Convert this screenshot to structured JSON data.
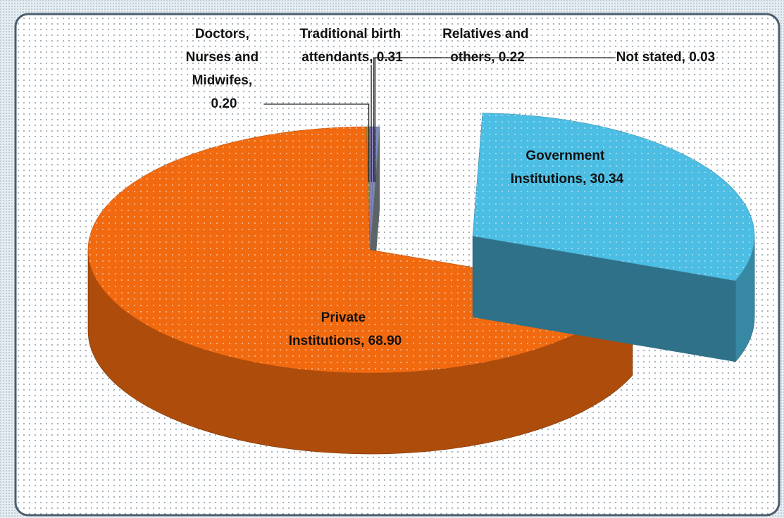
{
  "chart_data": {
    "type": "pie3d",
    "categories": [
      "Government Institutions, 30.34",
      "Private Institutions, 68.90",
      "Doctors, Nurses and Midwifes, 0.20",
      "Traditional birth attendants, 0.31",
      "Relatives and others, 0.22",
      "Not stated, 0.03"
    ],
    "values": [
      30.34,
      68.9,
      0.2,
      0.31,
      0.22,
      0.03
    ],
    "colors": [
      "#4cbde3",
      "#f26a10",
      "#7d9b3c",
      "#8d7fb8",
      "#7a8fc7",
      "#9aa6ae"
    ]
  }
}
